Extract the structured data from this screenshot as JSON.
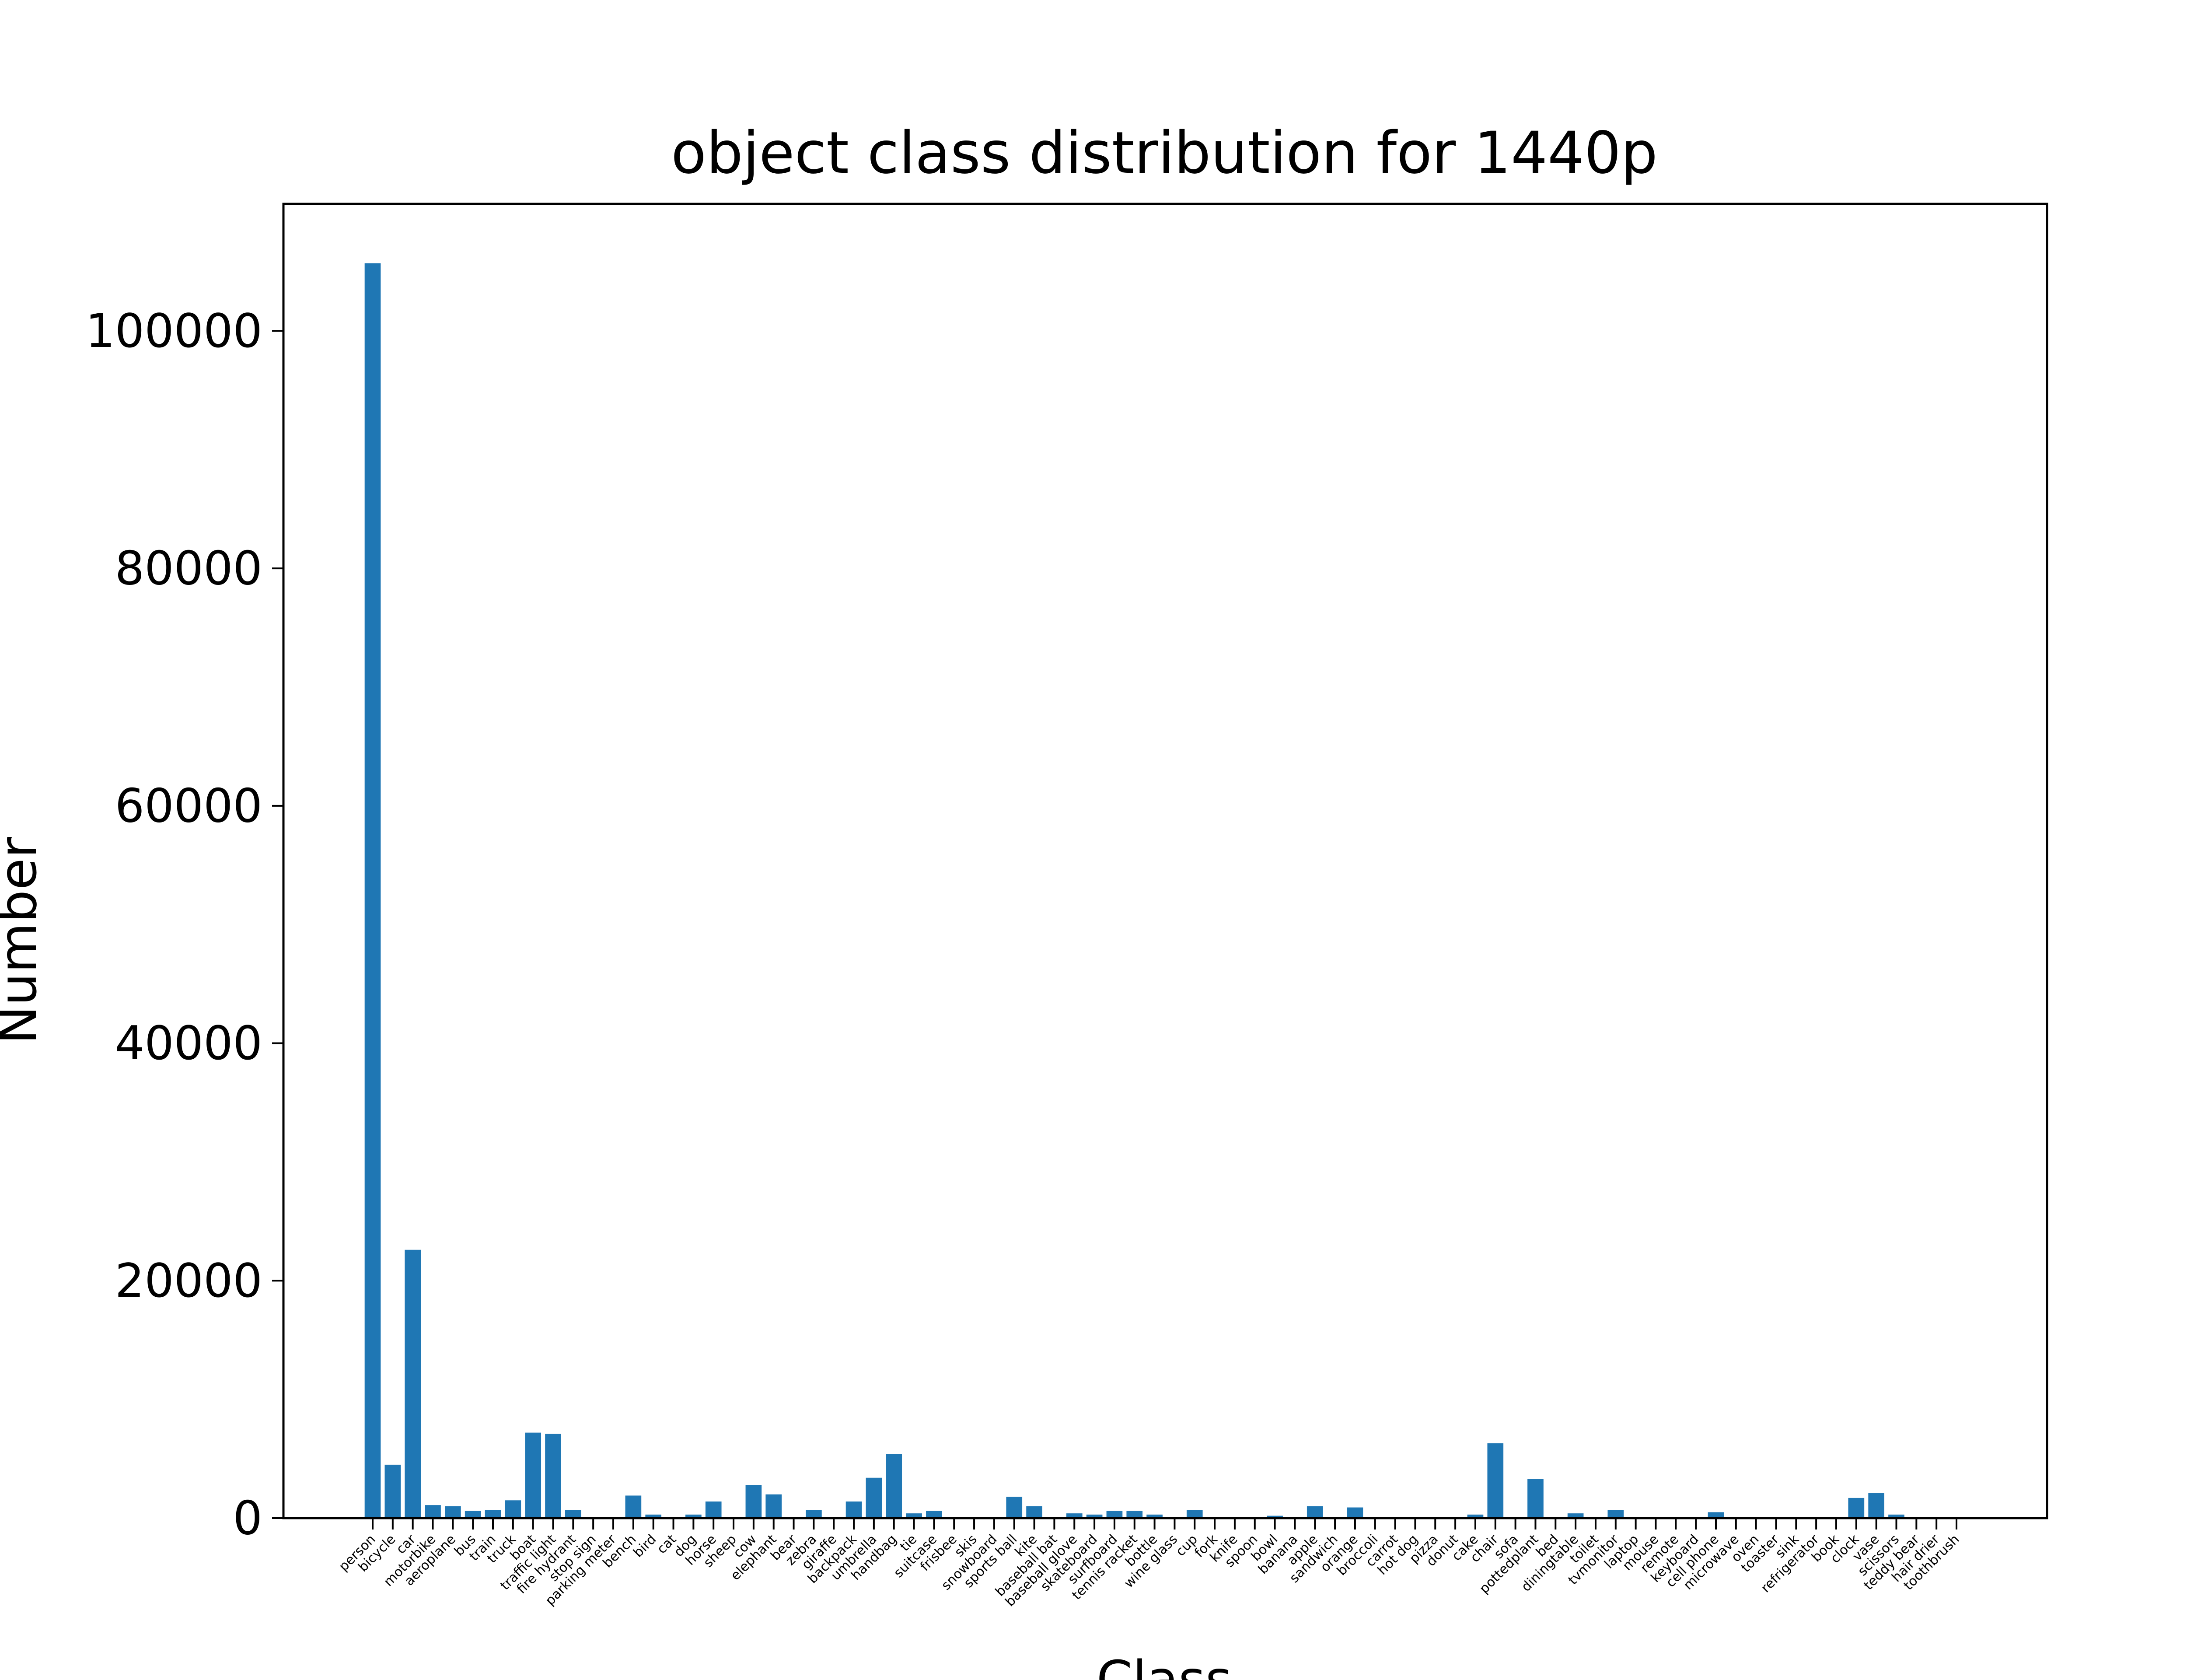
{
  "chart_data": {
    "type": "bar",
    "title": "object class distribution for 1440p",
    "xlabel": "Class",
    "ylabel": "Number",
    "ylim": [
      0,
      110700
    ],
    "yticks": [
      0,
      20000,
      40000,
      60000,
      80000,
      100000
    ],
    "ytick_labels": [
      "0",
      "20000",
      "40000",
      "60000",
      "80000",
      "100000"
    ],
    "grid": false,
    "legend": "none",
    "bar_color": "#1f77b4",
    "categories": [
      "person",
      "bicycle",
      "car",
      "motorbike",
      "aeroplane",
      "bus",
      "train",
      "truck",
      "boat",
      "traffic light",
      "fire hydrant",
      "stop sign",
      "parking meter",
      "bench",
      "bird",
      "cat",
      "dog",
      "horse",
      "sheep",
      "cow",
      "elephant",
      "bear",
      "zebra",
      "giraffe",
      "backpack",
      "umbrella",
      "handbag",
      "tie",
      "suitcase",
      "frisbee",
      "skis",
      "snowboard",
      "sports ball",
      "kite",
      "baseball bat",
      "baseball glove",
      "skateboard",
      "surfboard",
      "tennis racket",
      "bottle",
      "wine glass",
      "cup",
      "fork",
      "knife",
      "spoon",
      "bowl",
      "banana",
      "apple",
      "sandwich",
      "orange",
      "broccoli",
      "carrot",
      "hot dog",
      "pizza",
      "donut",
      "cake",
      "chair",
      "sofa",
      "pottedplant",
      "bed",
      "diningtable",
      "toilet",
      "tvmonitor",
      "laptop",
      "mouse",
      "remote",
      "keyboard",
      "cell phone",
      "microwave",
      "oven",
      "toaster",
      "sink",
      "refrigerator",
      "book",
      "clock",
      "vase",
      "scissors",
      "teddy bear",
      "hair drier",
      "toothbrush"
    ],
    "values": [
      105700,
      4500,
      22600,
      1100,
      1000,
      600,
      700,
      1500,
      7200,
      7100,
      700,
      0,
      0,
      1900,
      300,
      0,
      300,
      1400,
      0,
      2800,
      2000,
      0,
      700,
      0,
      1400,
      3400,
      5400,
      400,
      600,
      0,
      0,
      0,
      1800,
      1000,
      0,
      400,
      300,
      600,
      600,
      300,
      0,
      700,
      0,
      0,
      0,
      200,
      0,
      1000,
      0,
      900,
      0,
      0,
      0,
      0,
      0,
      300,
      6300,
      0,
      3300,
      0,
      400,
      0,
      700,
      0,
      0,
      0,
      0,
      500,
      0,
      0,
      0,
      0,
      0,
      0,
      1700,
      2100,
      300,
      0,
      0,
      0
    ]
  }
}
